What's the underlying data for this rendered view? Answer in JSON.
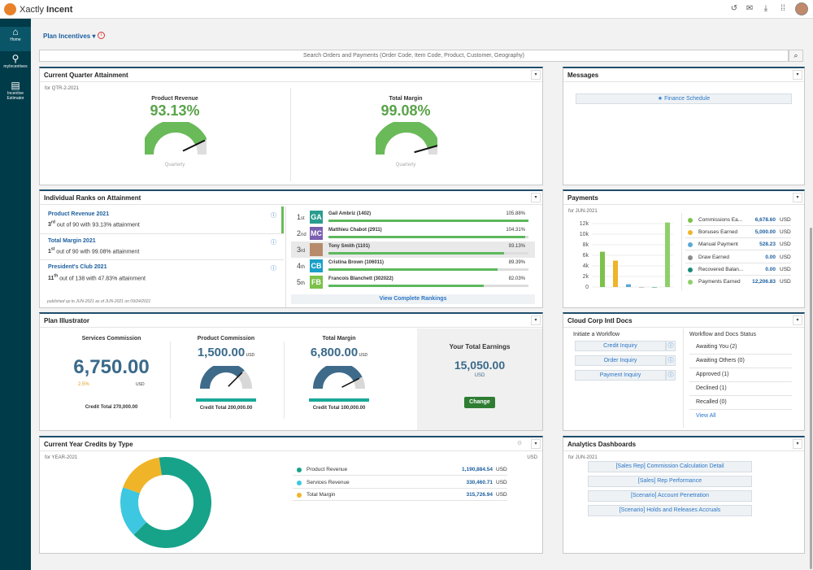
{
  "app": {
    "name_light": "Xactly",
    "name_bold": "Incent"
  },
  "topbar": {
    "icons": [
      "history-icon",
      "mail-icon",
      "download-icon",
      "apps-grid-icon"
    ]
  },
  "sidebar": {
    "items": [
      {
        "label": "Home",
        "icon": "home-icon"
      },
      {
        "label": "myIncentives",
        "icon": "my-incentives-icon"
      },
      {
        "label": "Incentive Estimator",
        "icon": "estimator-icon"
      }
    ]
  },
  "plan": {
    "title": "Plan Incentives",
    "info": "i"
  },
  "search": {
    "placeholder": "Search Orders and Payments (Order Code, Item Code, Product, Customer, Geography)"
  },
  "attainment": {
    "title": "Current Quarter Attainment",
    "period": "for QTR-2-2021",
    "gauges": [
      {
        "label": "Product Revenue",
        "value": "93.13%",
        "pct": 93.13,
        "caption": "Quarterly"
      },
      {
        "label": "Total Margin",
        "value": "99.08%",
        "pct": 99.08,
        "caption": "Quarterly"
      }
    ]
  },
  "messages": {
    "title": "Messages",
    "button": "Finance Schedule"
  },
  "ranks": {
    "title": "Individual Ranks on Attainment",
    "items": [
      {
        "name": "Product Revenue 2021",
        "rank": "3",
        "suffix": "rd",
        "desc": " out of 90 with 93.13% attainment"
      },
      {
        "name": "Total Margin 2021",
        "rank": "1",
        "suffix": "st",
        "desc": " out of 90 with 99.08% attainment"
      },
      {
        "name": "President's Club 2021",
        "rank": "11",
        "suffix": "th",
        "desc": " out of 138 with 47.83% attainment"
      }
    ],
    "footer": "published up to JUN-2021 as of JUN-2021 on 09/24/2021",
    "leaders": [
      {
        "pos": "1",
        "sfx": "st",
        "initials": "GA",
        "name": "Gail Ambriz (1402)",
        "pct": "105.88%",
        "value": 105.88,
        "color": "#2a9d8f"
      },
      {
        "pos": "2",
        "sfx": "nd",
        "initials": "MC",
        "name": "Matthieu Chabot (2911)",
        "pct": "104.31%",
        "value": 104.31,
        "color": "#7a5fb0"
      },
      {
        "pos": "3",
        "sfx": "rd",
        "initials": "",
        "name": "Tony Smith (1101)",
        "pct": "93.13%",
        "value": 93.13,
        "color": "#b58b6b"
      },
      {
        "pos": "4",
        "sfx": "th",
        "initials": "CB",
        "name": "Cristina Brown (106011)",
        "pct": "89.39%",
        "value": 89.39,
        "color": "#1aa0c8"
      },
      {
        "pos": "5",
        "sfx": "th",
        "initials": "FB",
        "name": "Francois Blanchett (302022)",
        "pct": "82.03%",
        "value": 82.03,
        "color": "#7cc24a"
      }
    ],
    "view_all": "View Complete Rankings"
  },
  "payments": {
    "title": "Payments",
    "period": "for JUN-2021",
    "currency": "USD",
    "yticks": [
      "12k",
      "10k",
      "8k",
      "6k",
      "4k",
      "2k",
      "0"
    ],
    "legend": [
      {
        "label": "Commissions Ea...",
        "value": "6,678.60",
        "color": "#7cc24a"
      },
      {
        "label": "Bonuses Earned",
        "value": "5,000.00",
        "color": "#f0b429"
      },
      {
        "label": "Manual Payment",
        "value": "528.23",
        "color": "#5aa9d6"
      },
      {
        "label": "Draw Earned",
        "value": "0.00",
        "color": "#8c8c8c"
      },
      {
        "label": "Recovered Balan...",
        "value": "0.00",
        "color": "#1a8a7a"
      },
      {
        "label": "Payments Earned",
        "value": "12,206.83",
        "color": "#8fcf6a"
      }
    ]
  },
  "illustrator": {
    "title": "Plan Illustrator",
    "commission": {
      "label": "Services Commission",
      "value": "6,750.00",
      "pct": "2.5%",
      "currency": "USD",
      "credit": "Credit Total 270,000.00"
    },
    "gauges": [
      {
        "label": "Product Commission",
        "value": "1,500.00",
        "currency": "USD",
        "credit": "Credit Total 200,000.00",
        "fill": 0.75
      },
      {
        "label": "Total Margin",
        "value": "6,800.00",
        "currency": "USD",
        "credit": "Credit Total 100,000.00",
        "fill": 0.85
      }
    ],
    "total": {
      "label": "Your Total Earnings",
      "value": "15,050.00",
      "currency": "USD",
      "button": "Change"
    }
  },
  "docs": {
    "title": "Cloud Corp Intl Docs",
    "initiate": "Initiate a Workflow",
    "workflows": [
      "Credit Inquiry",
      "Order Inquiry",
      "Payment Inquiry"
    ],
    "status_title": "Workflow and Docs Status",
    "statuses": [
      "Awaiting You (2)",
      "Awaiting Others (0)",
      "Approved (1)",
      "Declined (1)",
      "Recalled (0)"
    ],
    "view_all": "View All"
  },
  "credits": {
    "title": "Current Year Credits by Type",
    "period": "for YEAR-2021",
    "currency": "USD",
    "items": [
      {
        "label": "Product Revenue",
        "value": "1,190,884.54",
        "amount": 1190884.54,
        "color": "#16a38a"
      },
      {
        "label": "Services Revenue",
        "value": "330,460.71",
        "amount": 330460.71,
        "color": "#3ec7e0"
      },
      {
        "label": "Total Margin",
        "value": "315,726.94",
        "amount": 315726.94,
        "color": "#f0b429"
      }
    ]
  },
  "analytics": {
    "title": "Analytics Dashboards",
    "period": "for JUN-2021",
    "links": [
      "[Sales Rep] Commission Calculation Detail",
      "[Sales] Rep Performance",
      "[Scenario] Account Penetration",
      "[Scenario] Holds and Releases Accruals"
    ]
  }
}
